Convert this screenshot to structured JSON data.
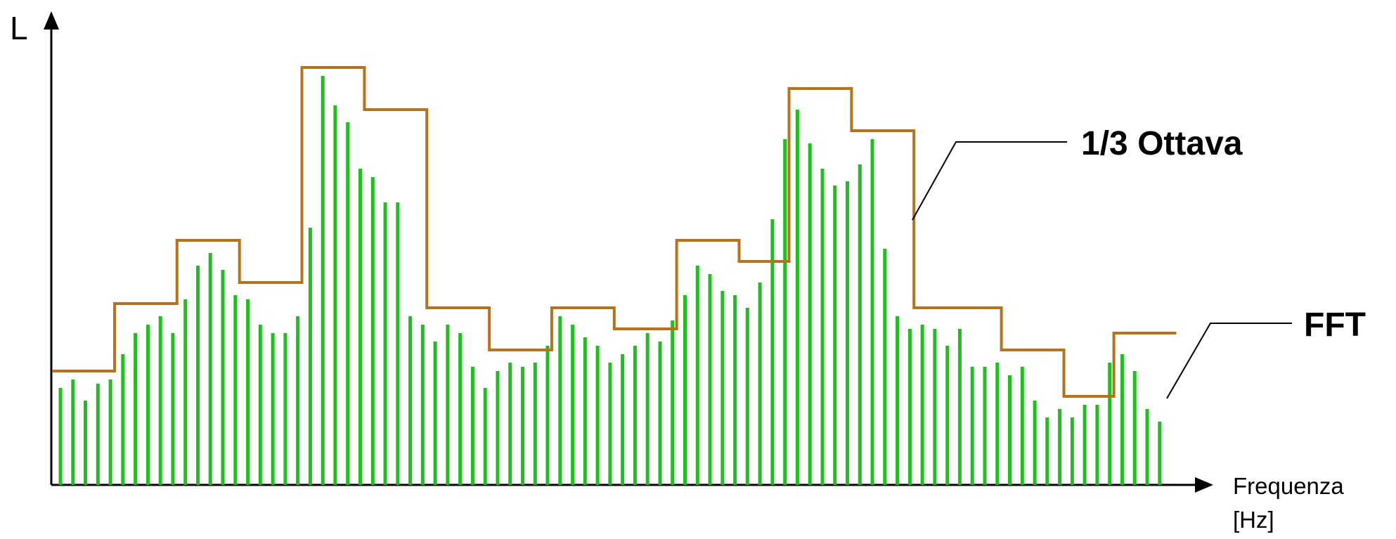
{
  "chart_data": {
    "type": "bar",
    "title": "",
    "ylabel": "L",
    "xlabel_line1": "Frequenza",
    "xlabel_line2": "[Hz]",
    "ylim": [
      0,
      100
    ],
    "grid": false,
    "legend": [
      "1/3 Ottava",
      "FFT"
    ],
    "series": [
      {
        "name": "FFT",
        "type": "bar",
        "color": "#1fbf1f",
        "values": [
          23,
          25,
          20,
          24,
          25,
          31,
          36,
          38,
          40,
          36,
          44,
          52,
          55,
          51,
          45,
          44,
          38,
          36,
          36,
          40,
          61,
          97,
          90,
          86,
          75,
          73,
          67,
          67,
          40,
          38,
          34,
          38,
          36,
          28,
          23,
          27,
          29,
          28,
          29,
          33,
          40,
          38,
          35,
          33,
          29,
          31,
          33,
          36,
          34,
          39,
          45,
          52,
          50,
          46,
          45,
          42,
          48,
          63,
          82,
          89,
          81,
          75,
          71,
          72,
          76,
          82,
          56,
          40,
          37,
          38,
          37,
          33,
          37,
          28,
          28,
          29,
          26,
          28,
          20,
          16,
          18,
          16,
          19,
          19,
          29,
          31,
          27,
          18,
          15
        ]
      },
      {
        "name": "1/3 Ottava",
        "type": "step",
        "color": "#b8721a",
        "bands": [
          {
            "start": 0,
            "end": 5,
            "value": 27
          },
          {
            "start": 5,
            "end": 10,
            "value": 43
          },
          {
            "start": 10,
            "end": 15,
            "value": 58
          },
          {
            "start": 15,
            "end": 20,
            "value": 48
          },
          {
            "start": 20,
            "end": 25,
            "value": 99
          },
          {
            "start": 25,
            "end": 30,
            "value": 89
          },
          {
            "start": 30,
            "end": 35,
            "value": 42
          },
          {
            "start": 35,
            "end": 40,
            "value": 32
          },
          {
            "start": 40,
            "end": 45,
            "value": 42
          },
          {
            "start": 45,
            "end": 50,
            "value": 37
          },
          {
            "start": 50,
            "end": 55,
            "value": 58
          },
          {
            "start": 55,
            "end": 59,
            "value": 53
          },
          {
            "start": 59,
            "end": 64,
            "value": 94
          },
          {
            "start": 64,
            "end": 69,
            "value": 84
          },
          {
            "start": 69,
            "end": 76,
            "value": 42
          },
          {
            "start": 76,
            "end": 81,
            "value": 32
          },
          {
            "start": 81,
            "end": 85,
            "value": 21
          },
          {
            "start": 85,
            "end": 90,
            "value": 36
          }
        ]
      }
    ]
  },
  "colors": {
    "fft": "#1fbf1f",
    "octave": "#b8721a",
    "axis": "#000000"
  }
}
